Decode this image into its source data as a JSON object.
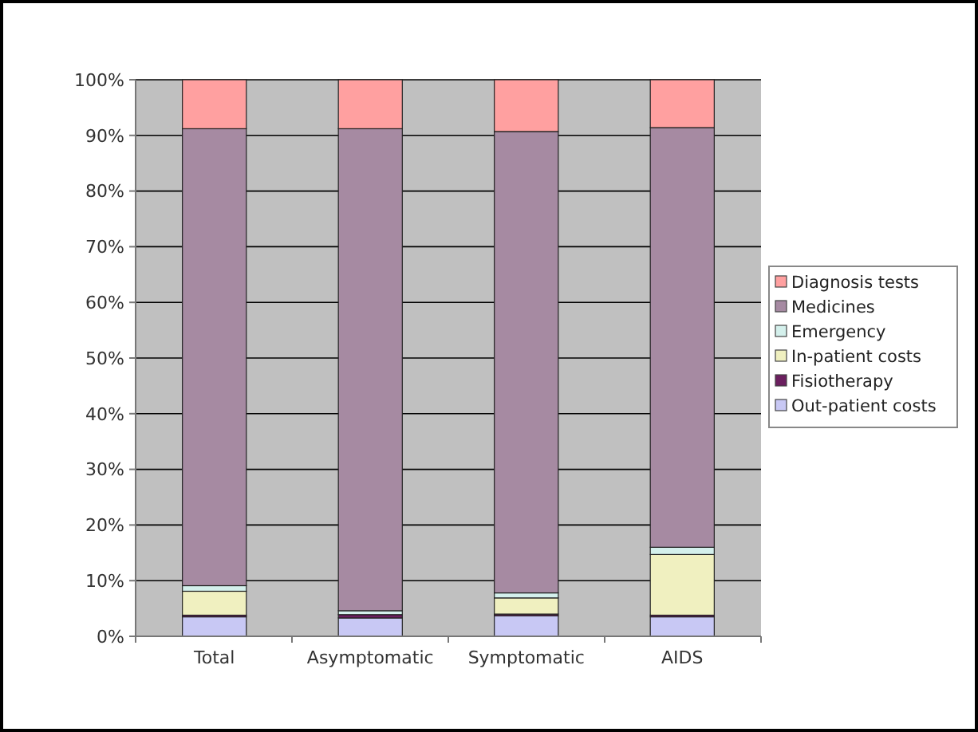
{
  "chart_data": {
    "type": "bar",
    "stacked": true,
    "categories": [
      "Total",
      "Asymptomatic",
      "Symptomatic",
      "AIDS"
    ],
    "series": [
      {
        "name": "Out-patient costs",
        "color": "#c8c8f4",
        "values": [
          3.5,
          3.3,
          3.7,
          3.5
        ]
      },
      {
        "name": "Fisiotherapy",
        "color": "#6b1f5f",
        "values": [
          0.3,
          0.6,
          0.3,
          0.3
        ]
      },
      {
        "name": "In-patient costs",
        "color": "#f0f0c0",
        "values": [
          4.3,
          null,
          2.9,
          10.9
        ]
      },
      {
        "name": "Emergency",
        "color": "#d4f0ec",
        "values": [
          1.0,
          0.7,
          0.9,
          1.3
        ]
      },
      {
        "name": "Medicines",
        "color": "#a68aa2",
        "values": [
          82.1,
          86.6,
          82.9,
          75.4
        ]
      },
      {
        "name": "Diagnosis tests",
        "color": "#ffa0a0",
        "values": [
          8.8,
          8.8,
          9.3,
          8.6
        ]
      }
    ],
    "ylim": [
      0,
      100
    ],
    "yticks": [
      {
        "value": 0,
        "label": "0%"
      },
      {
        "value": 10,
        "label": "10%"
      },
      {
        "value": 20,
        "label": "20%"
      },
      {
        "value": 30,
        "label": "30%"
      },
      {
        "value": 40,
        "label": "40%"
      },
      {
        "value": 50,
        "label": "50%"
      },
      {
        "value": 60,
        "label": "60%"
      },
      {
        "value": 70,
        "label": "70%"
      },
      {
        "value": 80,
        "label": "80%"
      },
      {
        "value": 90,
        "label": "90%"
      },
      {
        "value": 100,
        "label": "100%"
      }
    ],
    "grid": "y",
    "legend": "right"
  }
}
